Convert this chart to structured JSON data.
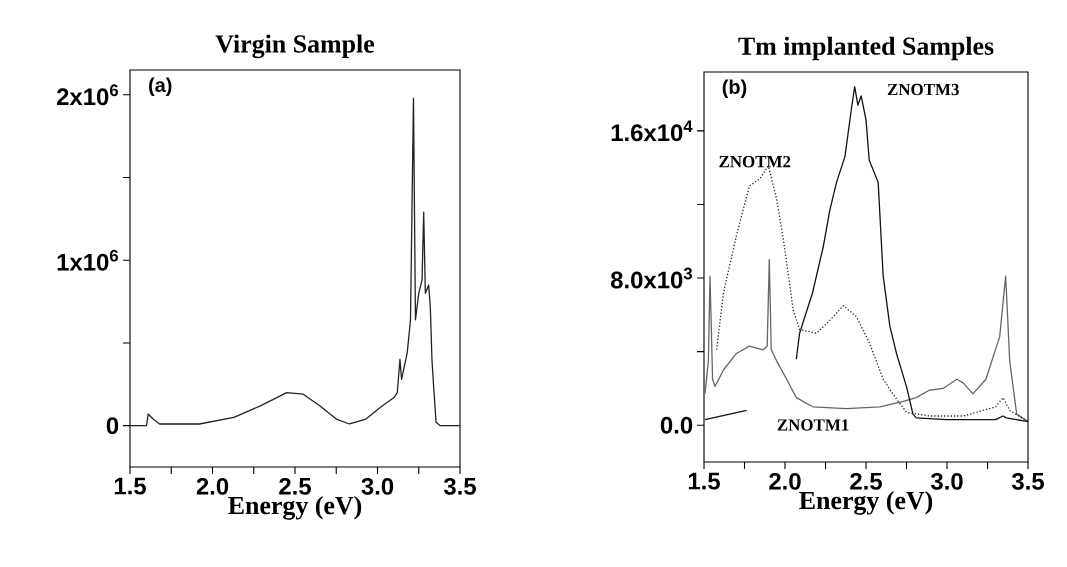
{
  "chart_data": [
    {
      "type": "line",
      "title": "Virgin Sample",
      "xlabel": "Energy (eV)",
      "annotations": [
        "(a)"
      ],
      "xlim": [
        1.5,
        3.5
      ],
      "ylim": [
        -250000,
        2150000
      ],
      "xticks": [
        {
          "value": 1.5,
          "label": "1.5"
        },
        {
          "value": 1.75,
          "label": null
        },
        {
          "value": 2,
          "label": "2.0"
        },
        {
          "value": 2.25,
          "label": null
        },
        {
          "value": 2.5,
          "label": "2.5"
        },
        {
          "value": 2.75,
          "label": null
        },
        {
          "value": 3,
          "label": "3.0"
        },
        {
          "value": 3.25,
          "label": null
        },
        {
          "value": 3.5,
          "label": "3.5"
        }
      ],
      "yticks": [
        {
          "value": 0,
          "label": "0"
        },
        {
          "value": 500000,
          "label": null
        },
        {
          "value": 1000000,
          "label": "1x10$^{6}$"
        },
        {
          "value": 1500000,
          "label": null
        },
        {
          "value": 2000000,
          "label": "2x10$^{6}$"
        }
      ],
      "series": [
        {
          "color": "#222222",
          "line_style": "solid",
          "x": [
            1.5,
            1.6,
            1.61,
            1.64,
            1.68,
            1.92,
            2.13,
            2.29,
            2.45,
            2.55,
            2.65,
            2.75,
            2.83,
            2.93,
            3.03,
            3.1,
            3.12,
            3.136,
            3.146,
            3.18,
            3.2,
            3.218,
            3.23,
            3.25,
            3.27,
            3.28,
            3.29,
            3.31,
            3.32,
            3.33,
            3.34,
            3.355,
            3.38,
            3.5
          ],
          "values": [
            0,
            0,
            70000,
            40000,
            10000,
            10000,
            50000,
            120000,
            200000,
            190000,
            120000,
            40000,
            10000,
            40000,
            120000,
            170000,
            200000,
            400000,
            280000,
            440000,
            640000,
            1980000,
            640000,
            800000,
            880000,
            1290000,
            800000,
            850000,
            720000,
            400000,
            240000,
            20000,
            0,
            0
          ]
        }
      ]
    },
    {
      "type": "line",
      "title": "Tm implanted Samples",
      "xlabel": "Energy (eV)",
      "annotations": [
        "(b)",
        "ZNOTM3",
        "ZNOTM2",
        "ZNOTM1"
      ],
      "xlim": [
        1.5,
        3.5
      ],
      "ylim": [
        -2000,
        19200
      ],
      "xticks": [
        {
          "value": 1.5,
          "label": "1.5"
        },
        {
          "value": 1.75,
          "label": null
        },
        {
          "value": 2,
          "label": "2.0"
        },
        {
          "value": 2.25,
          "label": null
        },
        {
          "value": 2.5,
          "label": "2.5"
        },
        {
          "value": 2.75,
          "label": null
        },
        {
          "value": 3,
          "label": "3.0"
        },
        {
          "value": 3.25,
          "label": null
        },
        {
          "value": 3.5,
          "label": "3.5"
        }
      ],
      "yticks": [
        {
          "value": 0,
          "label": "0.0"
        },
        {
          "value": 4000,
          "label": null
        },
        {
          "value": 8000,
          "label": "8.0x10$^{3}$"
        },
        {
          "value": 12000,
          "label": null
        },
        {
          "value": 16000,
          "label": "1.6x10$^{4}$"
        }
      ],
      "series": [
        {
          "color": "#666666",
          "line_style": "solid",
          "x": [
            1.506,
            1.527,
            1.537,
            1.553,
            1.568,
            1.62,
            1.7,
            1.78,
            1.866,
            1.89,
            1.903,
            1.915,
            1.948,
            2.01,
            2.07,
            2.17,
            2.38,
            2.585,
            2.73,
            2.81,
            2.89,
            2.976,
            3.06,
            3.1,
            3.16,
            3.24,
            3.325,
            3.362,
            3.387,
            3.43,
            3.5
          ],
          "values": [
            1700,
            3500,
            8100,
            2500,
            2100,
            3000,
            3900,
            4300,
            4100,
            4300,
            9000,
            4100,
            3500,
            2500,
            1500,
            1000,
            900,
            1000,
            1300,
            1500,
            1900,
            2000,
            2500,
            2300,
            1700,
            2500,
            4800,
            8100,
            3500,
            600,
            200
          ]
        },
        {
          "color": "#222222",
          "line_style": "dotted",
          "x": [
            1.578,
            1.62,
            1.7,
            1.78,
            1.845,
            1.897,
            1.948,
            1.99,
            2.05,
            2.09,
            2.195,
            2.277,
            2.36,
            2.44,
            2.52,
            2.606,
            2.69,
            2.75,
            2.89,
            3.1,
            3.3,
            3.346,
            3.387,
            3.5
          ],
          "values": [
            4100,
            7200,
            10300,
            13000,
            13400,
            14100,
            12300,
            10100,
            6300,
            5200,
            5000,
            5700,
            6500,
            5900,
            4500,
            2500,
            1400,
            700,
            500,
            500,
            1000,
            1500,
            800,
            200
          ]
        },
        {
          "color": "#111111",
          "line_style": "solid",
          "x": [
            1.506,
            1.763,
            1.9,
            2.07,
            2.09,
            2.17,
            2.236,
            2.277,
            2.318,
            2.37,
            2.41,
            2.43,
            2.45,
            2.47,
            2.5,
            2.52,
            2.575,
            2.606,
            2.647,
            2.688,
            2.75,
            2.79,
            2.81,
            2.996,
            3.3,
            3.346,
            3.365,
            3.5
          ],
          "values": [
            300,
            800,
            null,
            3600,
            5000,
            7200,
            9700,
            11700,
            13200,
            14600,
            17200,
            18400,
            17400,
            17900,
            16600,
            14400,
            13200,
            8100,
            5400,
            3900,
            2100,
            600,
            400,
            300,
            300,
            500,
            400,
            200
          ]
        }
      ]
    }
  ]
}
